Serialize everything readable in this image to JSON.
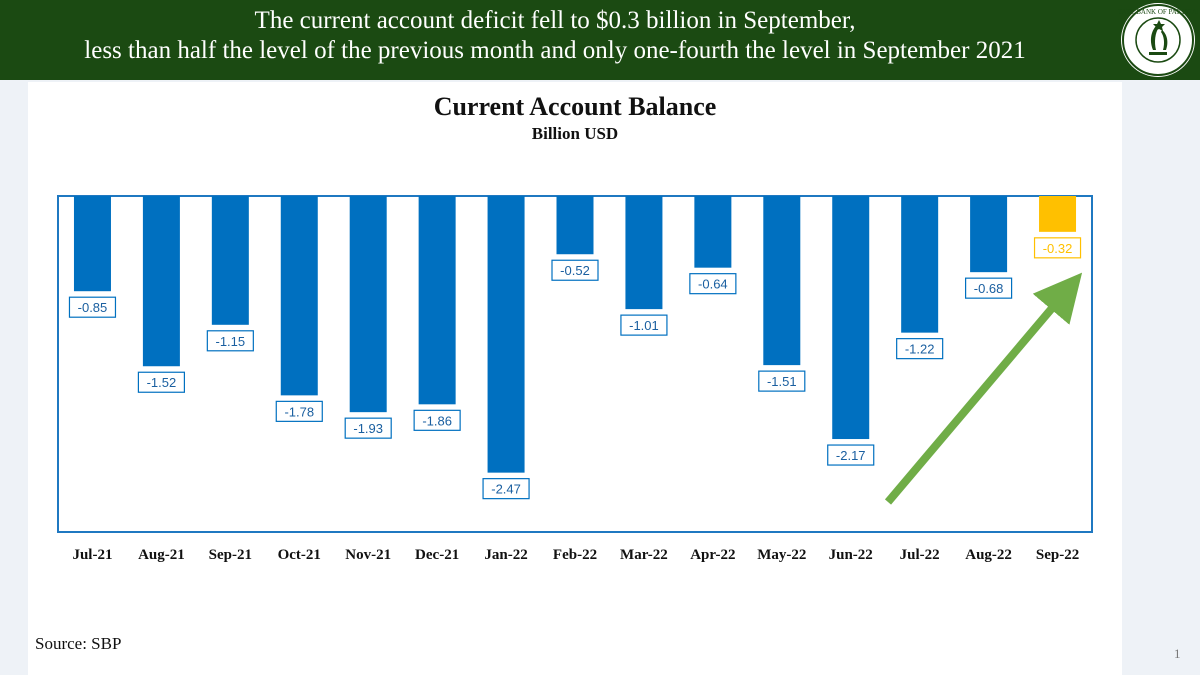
{
  "header": {
    "headline_line1": "The current account deficit fell to $0.3 billion in September,",
    "headline_line2": "less than half the level of the previous month and only one-fourth the level in September 2021",
    "logo_icon": "state-bank-of-pakistan-seal-icon",
    "logo_text": "STATE BANK OF PAKISTAN",
    "background_color": "#1b4a12"
  },
  "chart_data": {
    "type": "bar",
    "title": "Current Account Balance",
    "subtitle": "Billion USD",
    "categories": [
      "Jul-21",
      "Aug-21",
      "Sep-21",
      "Oct-21",
      "Nov-21",
      "Dec-21",
      "Jan-22",
      "Feb-22",
      "Mar-22",
      "Apr-22",
      "May-22",
      "Jun-22",
      "Jul-22",
      "Aug-22",
      "Sep-22"
    ],
    "values": [
      -0.85,
      -1.52,
      -1.15,
      -1.78,
      -1.93,
      -1.86,
      -2.47,
      -0.52,
      -1.01,
      -0.64,
      -1.51,
      -2.17,
      -1.22,
      -0.68,
      -0.32
    ],
    "ylim": [
      -3.0,
      0
    ],
    "bar_color": "#0070c0",
    "highlight_color": "#ffc000",
    "highlight_index": 14,
    "axis_color": "#1f78c1",
    "trend_arrow_color": "#70ad47",
    "grid": false,
    "legend": "none"
  },
  "footer": {
    "source": "Source: SBP",
    "page_number": "1"
  }
}
